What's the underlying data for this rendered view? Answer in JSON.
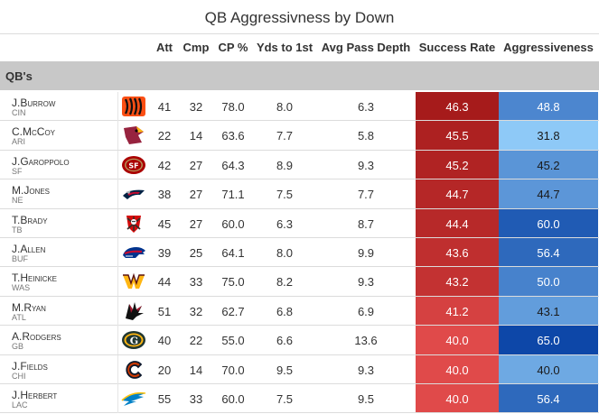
{
  "chart_data": {
    "type": "table",
    "title": "QB Aggressivness by Down",
    "group_label": "QB's",
    "columns": [
      "Att",
      "Cmp",
      "CP %",
      "Yds to 1st",
      "Avg Pass Depth",
      "Success Rate",
      "Aggressiveness"
    ],
    "rows": [
      {
        "first": "J.",
        "last": "Burrow",
        "team": "CIN",
        "logo": "bengals-logo",
        "att": 41,
        "cmp": 32,
        "cp": "78.0",
        "yds": "8.0",
        "depth": "6.3",
        "success": "46.3",
        "aggr": "48.8"
      },
      {
        "first": "C.",
        "last": "McCoy",
        "team": "ARI",
        "logo": "cardinals-logo",
        "att": 22,
        "cmp": 14,
        "cp": "63.6",
        "yds": "7.7",
        "depth": "5.8",
        "success": "45.5",
        "aggr": "31.8"
      },
      {
        "first": "J.",
        "last": "Garoppolo",
        "team": "SF",
        "logo": "49ers-logo",
        "att": 42,
        "cmp": 27,
        "cp": "64.3",
        "yds": "8.9",
        "depth": "9.3",
        "success": "45.2",
        "aggr": "45.2"
      },
      {
        "first": "M.",
        "last": "Jones",
        "team": "NE",
        "logo": "patriots-logo",
        "att": 38,
        "cmp": 27,
        "cp": "71.1",
        "yds": "7.5",
        "depth": "7.7",
        "success": "44.7",
        "aggr": "44.7"
      },
      {
        "first": "T.",
        "last": "Brady",
        "team": "TB",
        "logo": "buccaneers-logo",
        "att": 45,
        "cmp": 27,
        "cp": "60.0",
        "yds": "6.3",
        "depth": "8.7",
        "success": "44.4",
        "aggr": "60.0"
      },
      {
        "first": "J.",
        "last": "Allen",
        "team": "BUF",
        "logo": "bills-logo",
        "att": 39,
        "cmp": 25,
        "cp": "64.1",
        "yds": "8.0",
        "depth": "9.9",
        "success": "43.6",
        "aggr": "56.4"
      },
      {
        "first": "T.",
        "last": "Heinicke",
        "team": "WAS",
        "logo": "washington-logo",
        "att": 44,
        "cmp": 33,
        "cp": "75.0",
        "yds": "8.2",
        "depth": "9.3",
        "success": "43.2",
        "aggr": "50.0"
      },
      {
        "first": "M.",
        "last": "Ryan",
        "team": "ATL",
        "logo": "falcons-logo",
        "att": 51,
        "cmp": 32,
        "cp": "62.7",
        "yds": "6.8",
        "depth": "6.9",
        "success": "41.2",
        "aggr": "43.1"
      },
      {
        "first": "A.",
        "last": "Rodgers",
        "team": "GB",
        "logo": "packers-logo",
        "att": 40,
        "cmp": 22,
        "cp": "55.0",
        "yds": "6.6",
        "depth": "13.6",
        "success": "40.0",
        "aggr": "65.0"
      },
      {
        "first": "J.",
        "last": "Fields",
        "team": "CHI",
        "logo": "bears-logo",
        "att": 20,
        "cmp": 14,
        "cp": "70.0",
        "yds": "9.5",
        "depth": "9.3",
        "success": "40.0",
        "aggr": "40.0"
      },
      {
        "first": "J.",
        "last": "Herbert",
        "team": "LAC",
        "logo": "chargers-logo",
        "att": 55,
        "cmp": 33,
        "cp": "60.0",
        "yds": "7.5",
        "depth": "9.5",
        "success": "40.0",
        "aggr": "56.4"
      }
    ],
    "success_color_range": [
      "#e04a4a",
      "#a61b1b"
    ],
    "aggr_color_range": [
      "#8ec9f7",
      "#0d47a8"
    ]
  }
}
